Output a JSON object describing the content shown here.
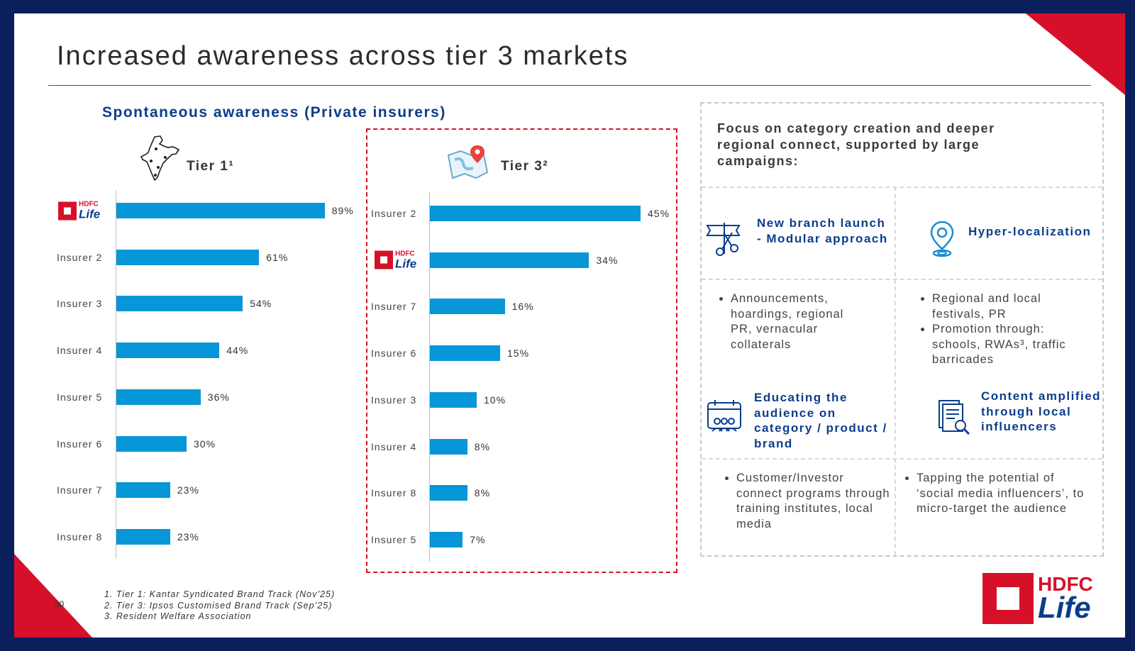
{
  "title": "Increased awareness across tier 3 markets",
  "subtitle": "Spontaneous awareness (Private insurers)",
  "colors": {
    "bar": "#0796d8",
    "accent": "#d7102a",
    "brand_blue": "#0b3d8c",
    "frame": "#0b1f5c"
  },
  "logo": {
    "line1": "HDFC",
    "line2": "Life"
  },
  "chart_data": [
    {
      "type": "bar",
      "orientation": "horizontal",
      "title": "Tier 1¹",
      "categories": [
        "HDFC Life",
        "Insurer 2",
        "Insurer 3",
        "Insurer 4",
        "Insurer 5",
        "Insurer 6",
        "Insurer 7",
        "Insurer 8"
      ],
      "category_labels": [
        "",
        "Insurer 2",
        "Insurer 3",
        "Insurer 4",
        "Insurer 5",
        "Insurer 6",
        "Insurer 7",
        "Insurer 8"
      ],
      "values": [
        89,
        61,
        54,
        44,
        36,
        30,
        23,
        23
      ],
      "value_labels": [
        "89%",
        "61%",
        "54%",
        "44%",
        "36%",
        "30%",
        "23%",
        "23%"
      ],
      "unit": "%",
      "xlim": [
        0,
        100
      ]
    },
    {
      "type": "bar",
      "orientation": "horizontal",
      "title": "Tier 3²",
      "categories": [
        "Insurer 2",
        "HDFC Life",
        "Insurer 7",
        "Insurer 6",
        "Insurer 3",
        "Insurer 4",
        "Insurer 8",
        "Insurer 5"
      ],
      "category_labels": [
        "Insurer 2",
        "",
        "Insurer 7",
        "Insurer 6",
        "Insurer 3",
        "Insurer 4",
        "Insurer 8",
        "Insurer 5"
      ],
      "values": [
        45,
        34,
        16,
        15,
        10,
        8,
        8,
        7
      ],
      "value_labels": [
        "45%",
        "34%",
        "16%",
        "15%",
        "10%",
        "8%",
        "8%",
        "7%"
      ],
      "unit": "%",
      "xlim": [
        0,
        50
      ]
    }
  ],
  "panel": {
    "heading": "Focus on category creation and deeper regional connect, supported by large campaigns:",
    "features": [
      {
        "icon": "ribbon-cutting-icon",
        "title": "New branch launch - Modular approach",
        "bullets": [
          "Announcements, hoardings, regional PR, vernacular collaterals"
        ]
      },
      {
        "icon": "location-pin-icon",
        "title": "Hyper-localization",
        "bullets": [
          "Regional and local festivals, PR",
          "Promotion through: schools, RWAs³, traffic barricades"
        ]
      },
      {
        "icon": "calendar-people-icon",
        "title": "Educating the audience on category / product / brand",
        "bullets": [
          "Customer/Investor connect programs through training institutes, local media"
        ]
      },
      {
        "icon": "document-search-icon",
        "title": "Content amplified through local influencers",
        "bullets": [
          "Tapping the potential of ‘social media influencers’, to micro-target the audience"
        ]
      }
    ]
  },
  "footnotes": [
    "1. Tier 1: Kantar Syndicated Brand Track (Nov’25)",
    "2. Tier 3: Ipsos Customised Brand Track (Sep’25)",
    "3. Resident Welfare Association"
  ],
  "page_number": "30"
}
